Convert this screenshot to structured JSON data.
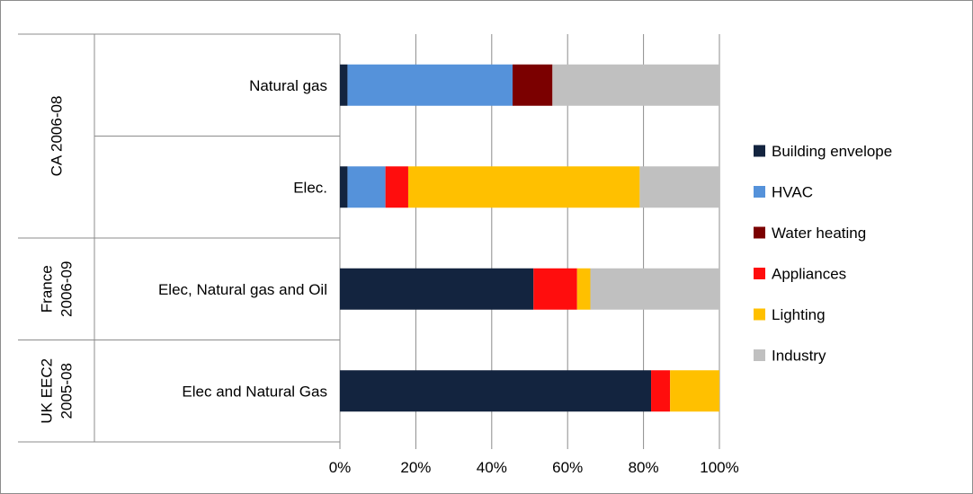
{
  "chart_data": {
    "type": "bar",
    "orientation": "horizontal",
    "stacked": "percent",
    "groups": [
      {
        "label": "CA 2006-08",
        "categories": [
          "Natural gas",
          "Elec."
        ]
      },
      {
        "label": "France 2006-09",
        "label_lines": [
          "France",
          "2006-09"
        ],
        "categories": [
          "Elec, Natural gas and Oil"
        ]
      },
      {
        "label": "UK EEC2 2005-08",
        "label_lines": [
          "UK EEC2",
          "2005-08"
        ],
        "categories": [
          "Elec and Natural Gas"
        ]
      }
    ],
    "categories": [
      "Natural gas",
      "Elec.",
      "Elec, Natural gas and Oil",
      "Elec and Natural Gas"
    ],
    "series": [
      {
        "name": "Building envelope",
        "color": "#13243F",
        "values": [
          2,
          2,
          51,
          82
        ]
      },
      {
        "name": "HVAC",
        "color": "#5592DA",
        "values": [
          43.5,
          10,
          0,
          0
        ]
      },
      {
        "name": "Water heating",
        "color": "#7B0000",
        "values": [
          10.5,
          0,
          0,
          0
        ]
      },
      {
        "name": "Appliances",
        "color": "#FF0D0D",
        "values": [
          0,
          6,
          11.5,
          5
        ]
      },
      {
        "name": "Lighting",
        "color": "#FFC000",
        "values": [
          0,
          61,
          3.5,
          13
        ]
      },
      {
        "name": "Industry",
        "color": "#C0C0C0",
        "values": [
          44,
          21,
          34,
          0
        ]
      }
    ],
    "xlim": [
      0,
      100
    ],
    "x_ticks": [
      "0%",
      "20%",
      "40%",
      "60%",
      "80%",
      "100%"
    ],
    "grid": true,
    "legend_position": "right",
    "title": "",
    "xlabel": "",
    "ylabel": ""
  }
}
